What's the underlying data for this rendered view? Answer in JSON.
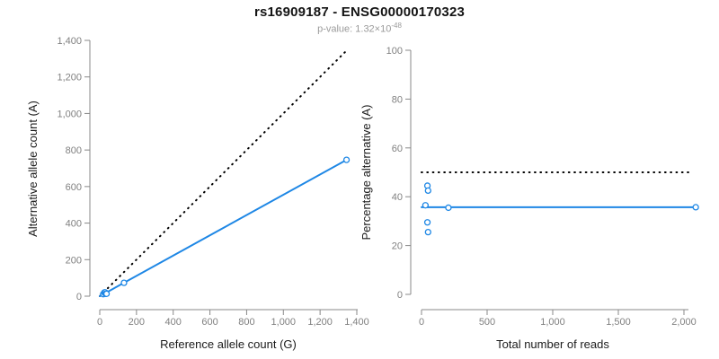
{
  "header": {
    "title": "rs16909187 - ENSG00000170323",
    "p_value_label": "p-value: 1.32×10",
    "p_value_exponent": "-48"
  },
  "colors": {
    "series_blue": "#1E87E5",
    "axis_gray": "#888888",
    "tick_label_gray": "#808080",
    "axis_label_black": "#1a1a1a",
    "subtitle_gray": "#9a9a9a",
    "reference_dotted_black": "#000000",
    "point_fill_white": "#ffffff"
  },
  "chart_data": [
    {
      "type": "scatter",
      "panel": "left",
      "xlabel": "Reference allele count (G)",
      "ylabel": "Alternative allele count (A)",
      "xlim": [
        0,
        1400
      ],
      "ylim": [
        0,
        1400
      ],
      "grid": false,
      "xticks": [
        {
          "v": 0,
          "label": "0"
        },
        {
          "v": 200,
          "label": "200"
        },
        {
          "v": 400,
          "label": "400"
        },
        {
          "v": 600,
          "label": "600"
        },
        {
          "v": 800,
          "label": "800"
        },
        {
          "v": 1000,
          "label": "1,000"
        },
        {
          "v": 1200,
          "label": "1,200"
        },
        {
          "v": 1400,
          "label": "1,400"
        }
      ],
      "yticks": [
        {
          "v": 0,
          "label": "0"
        },
        {
          "v": 200,
          "label": "200"
        },
        {
          "v": 400,
          "label": "400"
        },
        {
          "v": 600,
          "label": "600"
        },
        {
          "v": 800,
          "label": "800"
        },
        {
          "v": 1000,
          "label": "1,000"
        },
        {
          "v": 1200,
          "label": "1,200"
        },
        {
          "v": 1400,
          "label": "1,400"
        }
      ],
      "points": [
        [
          19,
          11
        ],
        [
          25,
          20
        ],
        [
          29,
          21
        ],
        [
          32,
          13
        ],
        [
          37,
          13
        ],
        [
          132,
          73
        ],
        [
          1344,
          746
        ]
      ],
      "fit_line": {
        "x1": 0,
        "y1": 0,
        "x2": 1344,
        "y2": 746,
        "style": "solid"
      },
      "reference_line": {
        "x1": 0,
        "y1": 0,
        "x2": 1340,
        "y2": 1340,
        "style": "dotted"
      }
    },
    {
      "type": "scatter",
      "panel": "right",
      "xlabel": "Total number of reads",
      "ylabel": "Percentage alternative (A)",
      "xlim": [
        0,
        2100
      ],
      "ylim": [
        0,
        100
      ],
      "grid": false,
      "xticks": [
        {
          "v": 0,
          "label": "0"
        },
        {
          "v": 500,
          "label": "500"
        },
        {
          "v": 1000,
          "label": "1,000"
        },
        {
          "v": 1500,
          "label": "1,500"
        },
        {
          "v": 2000,
          "label": "2,000"
        }
      ],
      "yticks": [
        {
          "v": 0,
          "label": "0"
        },
        {
          "v": 20,
          "label": "20"
        },
        {
          "v": 40,
          "label": "40"
        },
        {
          "v": 60,
          "label": "60"
        },
        {
          "v": 80,
          "label": "80"
        },
        {
          "v": 100,
          "label": "100"
        }
      ],
      "points": [
        [
          30,
          36.5
        ],
        [
          45,
          44.5
        ],
        [
          50,
          42.5
        ],
        [
          45,
          29.5
        ],
        [
          50,
          25.5
        ],
        [
          205,
          35.5
        ],
        [
          2090,
          35.7
        ]
      ],
      "fit_line": {
        "x1": 0,
        "y1": 35.7,
        "x2": 2090,
        "y2": 35.7,
        "style": "solid"
      },
      "reference_line": {
        "x1": 0,
        "y1": 50,
        "x2": 2040,
        "y2": 50,
        "style": "dotted"
      }
    }
  ]
}
